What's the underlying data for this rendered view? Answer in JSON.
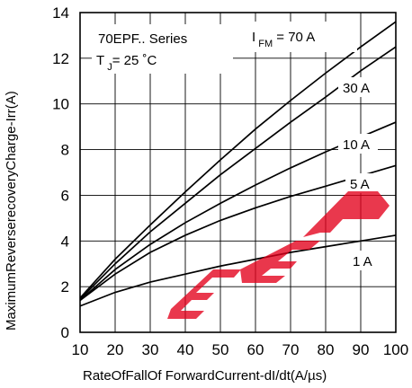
{
  "chart_data": {
    "type": "line",
    "title": "",
    "xlabel": "RateOfFallOf ForwardCurrent-dI/dt(A/µs)",
    "ylabel": "MaximumReverserecoveryCharge-Irr(A)",
    "xlim": [
      10,
      100
    ],
    "ylim": [
      0,
      14
    ],
    "x_ticks": [
      10,
      20,
      30,
      40,
      50,
      60,
      70,
      80,
      90,
      100
    ],
    "y_ticks": [
      0,
      2,
      4,
      6,
      8,
      10,
      12,
      14
    ],
    "grid": true,
    "x": [
      10,
      20,
      30,
      40,
      50,
      60,
      70,
      80,
      90,
      100
    ],
    "series": [
      {
        "name": "70 A",
        "values": [
          1.5,
          3.2,
          4.7,
          6.15,
          7.55,
          8.9,
          10.15,
          11.35,
          12.5,
          13.6
        ]
      },
      {
        "name": "30 A",
        "values": [
          1.45,
          3.0,
          4.4,
          5.65,
          6.9,
          8.05,
          9.2,
          10.3,
          11.45,
          12.5
        ]
      },
      {
        "name": "10 A",
        "values": [
          1.4,
          2.75,
          3.85,
          4.8,
          5.65,
          6.45,
          7.2,
          7.9,
          8.55,
          9.2
        ]
      },
      {
        "name": "5 A",
        "values": [
          1.4,
          2.55,
          3.5,
          4.25,
          4.9,
          5.45,
          5.95,
          6.4,
          6.85,
          7.3
        ]
      },
      {
        "name": "1 A",
        "values": [
          1.15,
          1.75,
          2.2,
          2.55,
          2.9,
          3.2,
          3.5,
          3.75,
          4.0,
          4.25
        ]
      }
    ],
    "series_label_text": [
      "I FM = 70 A",
      "30 A",
      "10 A",
      "5 A",
      "1 A"
    ],
    "annotation": {
      "line1": "70EPF.. Series",
      "line2_prefix": "T",
      "line2_sub": "J",
      "line2_suffix": "= 25 ˚C"
    },
    "ifm_label": {
      "prefix": "I",
      "sub": "FM",
      "suffix": "= 70 A"
    },
    "colors": {
      "background": "#ffffff",
      "axes": "#000000",
      "lines": "#000000",
      "watermark": "#e3001b"
    },
    "watermark_text": "GEP"
  }
}
